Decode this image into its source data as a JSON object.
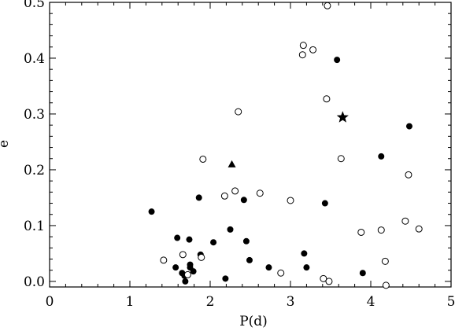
{
  "chart_data": {
    "type": "scatter",
    "xlabel": "P(d)",
    "ylabel": "e",
    "xlim": [
      0,
      5
    ],
    "ylim": [
      -0.01,
      0.5
    ],
    "xticks": [
      0,
      1,
      2,
      3,
      4,
      5
    ],
    "xtick_labels": [
      "0",
      "1",
      "2",
      "3",
      "4",
      "5"
    ],
    "yticks": [
      0.0,
      0.1,
      0.2,
      0.3,
      0.4,
      0.5
    ],
    "ytick_labels": [
      "0.0",
      "0.1",
      "0.2",
      "0.3",
      "0.4",
      "0.5"
    ],
    "grid": false,
    "legend": "none",
    "series": [
      {
        "marker": "filled-circle",
        "x": [
          1.27,
          1.57,
          1.59,
          1.65,
          1.68,
          1.69,
          1.74,
          1.75,
          1.75,
          1.79,
          1.86,
          1.88,
          2.04,
          2.19,
          2.25,
          2.42,
          2.45,
          2.49,
          2.73,
          3.17,
          3.2,
          3.43,
          3.58,
          3.9,
          4.13,
          4.48
        ],
        "y": [
          0.125,
          0.025,
          0.078,
          0.015,
          0.01,
          0.0,
          0.075,
          0.025,
          0.03,
          0.018,
          0.15,
          0.048,
          0.07,
          0.005,
          0.093,
          0.146,
          0.072,
          0.038,
          0.025,
          0.05,
          0.025,
          0.14,
          0.397,
          0.015,
          0.224,
          0.278
        ]
      },
      {
        "marker": "open-circle",
        "x": [
          1.42,
          1.66,
          1.72,
          1.89,
          1.91,
          2.18,
          2.31,
          2.35,
          2.62,
          3.0,
          3.15,
          3.16,
          3.28,
          3.41,
          3.45,
          3.46,
          3.48,
          3.63,
          3.88,
          4.13,
          4.18,
          4.19,
          4.43,
          4.47,
          4.6,
          2.88
        ],
        "y": [
          0.038,
          0.048,
          0.012,
          0.043,
          0.219,
          0.153,
          0.162,
          0.304,
          0.158,
          0.145,
          0.406,
          0.423,
          0.415,
          0.005,
          0.327,
          0.494,
          0.0,
          0.22,
          0.088,
          0.092,
          0.036,
          -0.007,
          0.108,
          0.191,
          0.094,
          0.015
        ]
      },
      {
        "marker": "filled-triangle",
        "x": [
          2.27
        ],
        "y": [
          0.21
        ]
      },
      {
        "marker": "filled-star",
        "x": [
          3.65
        ],
        "y": [
          0.294
        ]
      }
    ]
  }
}
